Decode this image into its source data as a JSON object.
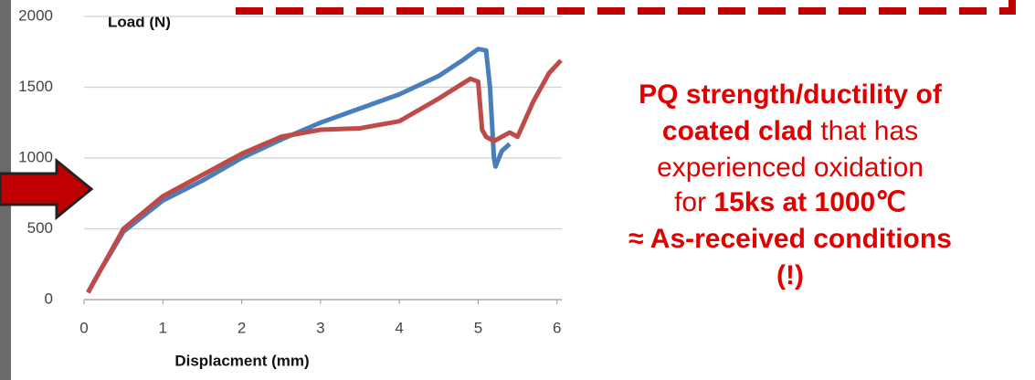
{
  "chart_data": {
    "type": "line",
    "y_label": "Load (N)",
    "x_label": "Displacment (mm)",
    "xlim": [
      0,
      6.2
    ],
    "ylim": [
      0,
      2000
    ],
    "xticks": [
      0,
      1,
      2,
      3,
      4,
      5,
      6
    ],
    "yticks": [
      0,
      500,
      1000,
      1500,
      2000
    ],
    "grid": true,
    "series": [
      {
        "color": "#4a7ebb",
        "x": [
          0.05,
          0.2,
          0.5,
          1,
          1.5,
          2,
          2.5,
          3,
          3.5,
          4,
          4.5,
          4.8,
          5,
          5.1,
          5.15,
          5.2,
          5.22,
          5.3,
          5.4
        ],
        "values": [
          50,
          200,
          480,
          700,
          840,
          1000,
          1130,
          1250,
          1350,
          1450,
          1580,
          1690,
          1770,
          1760,
          1500,
          1000,
          940,
          1050,
          1100
        ]
      },
      {
        "color": "#be4b48",
        "x": [
          0.05,
          0.5,
          1,
          1.5,
          2,
          2.5,
          3,
          3.5,
          4,
          4.5,
          4.9,
          5,
          5.05,
          5.1,
          5.2,
          5.4,
          5.5,
          5.7,
          5.9,
          6.05
        ],
        "values": [
          50,
          500,
          730,
          880,
          1030,
          1150,
          1200,
          1210,
          1260,
          1420,
          1560,
          1540,
          1200,
          1150,
          1120,
          1180,
          1150,
          1400,
          1600,
          1690
        ]
      }
    ],
    "annotation": [
      [
        {
          "text": "PQ strength/ductility of",
          "bold": true
        }
      ],
      [
        {
          "text": "coated clad",
          "bold": true
        },
        {
          "text": " that has",
          "bold": false
        }
      ],
      [
        {
          "text": "experienced oxidation",
          "bold": false
        }
      ],
      [
        {
          "text": "for ",
          "bold": false
        },
        {
          "text": "15ks at 1000℃",
          "bold": true
        }
      ],
      [
        {
          "text": "≈ As-received conditions",
          "bold": true
        }
      ],
      [
        {
          "text": "(!)",
          "bold": true
        }
      ]
    ]
  }
}
